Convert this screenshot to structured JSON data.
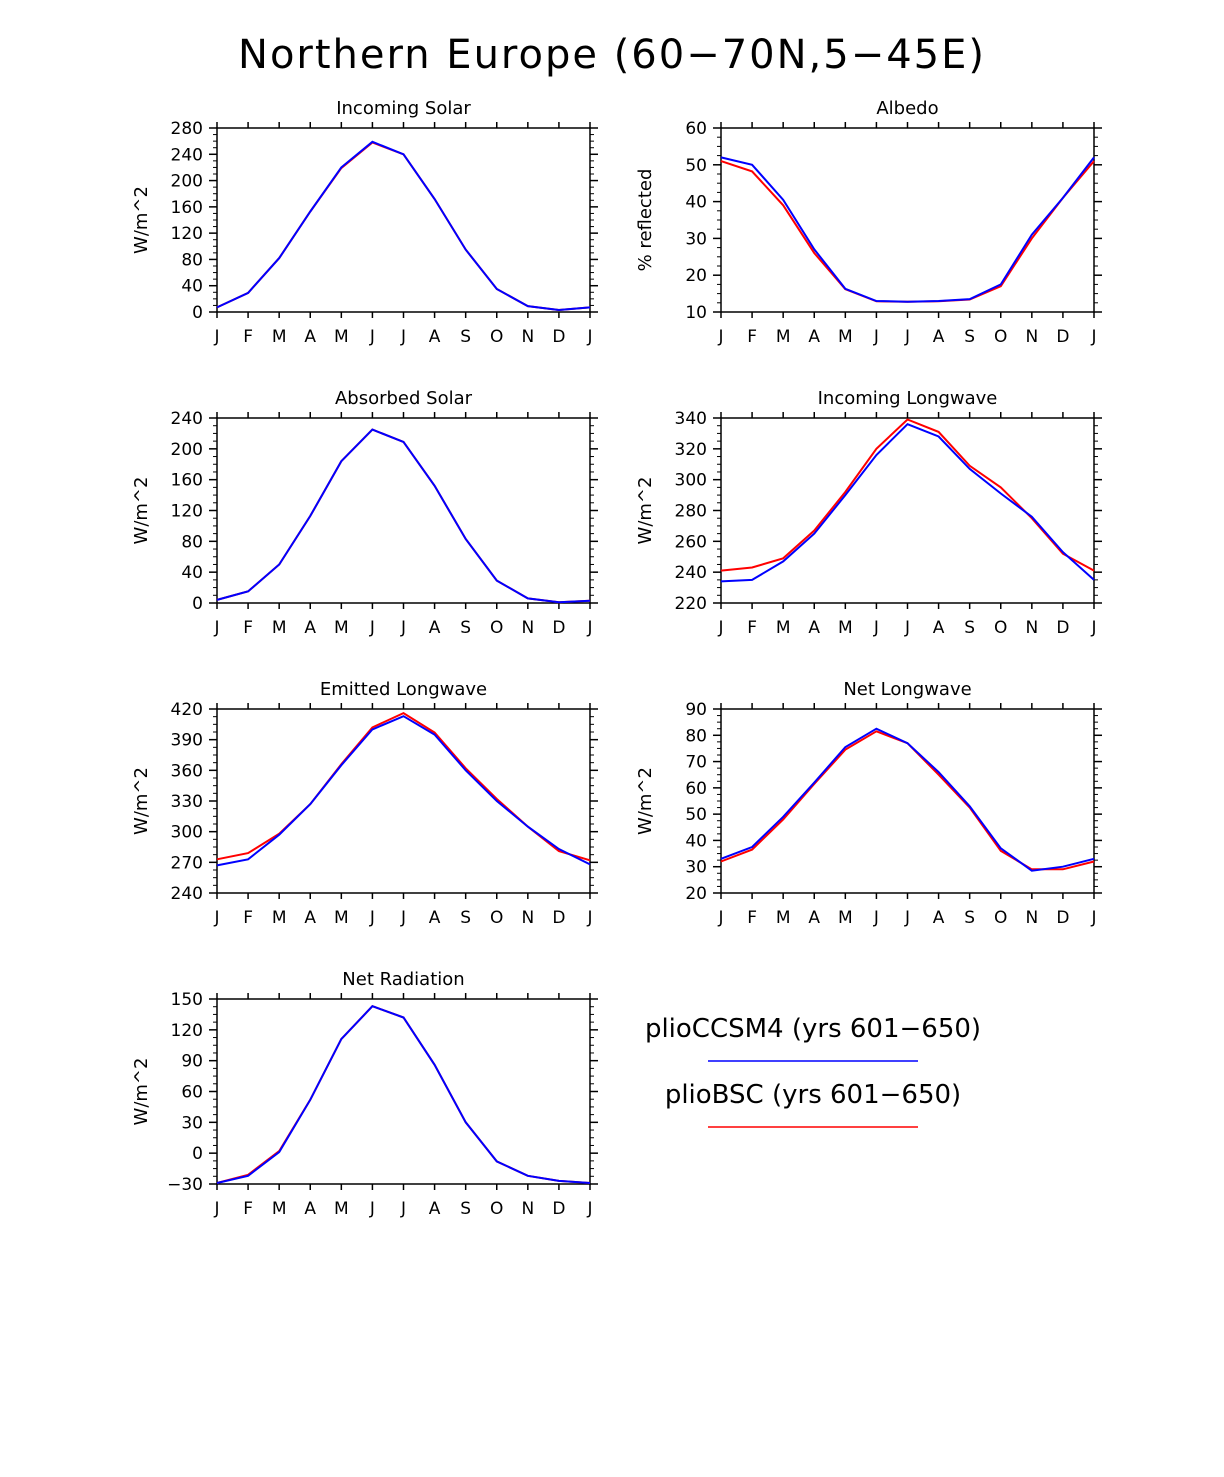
{
  "title": "Northern Europe (60−70N,5−45E)",
  "colors": {
    "series1": "#0000ff",
    "series2": "#ff0000"
  },
  "legend": [
    {
      "label": "plioCCSM4 (yrs 601−650)",
      "color": "#0000ff"
    },
    {
      "label": "plioBSC (yrs 601−650)",
      "color": "#ff0000"
    }
  ],
  "chart_data": [
    {
      "type": "line",
      "title": "Incoming Solar",
      "ylabel": "W/m^2",
      "ylim": [
        0,
        280
      ],
      "yticks": [
        0,
        40,
        80,
        120,
        160,
        200,
        240,
        280
      ],
      "categories": [
        "J",
        "F",
        "M",
        "A",
        "M",
        "J",
        "J",
        "A",
        "S",
        "O",
        "N",
        "D",
        "J"
      ],
      "series": [
        {
          "name": "plioCCSM4 (yrs 601−650)",
          "values": [
            7,
            29,
            82,
            153,
            220,
            259,
            240,
            172,
            95,
            35,
            9,
            3,
            7
          ]
        },
        {
          "name": "plioBSC (yrs 601−650)",
          "values": [
            7,
            29,
            82,
            153,
            219,
            258,
            240,
            172,
            95,
            35,
            9,
            3,
            7
          ]
        }
      ]
    },
    {
      "type": "line",
      "title": "Albedo",
      "ylabel": "% reflected",
      "ylim": [
        10,
        60
      ],
      "yticks": [
        10,
        20,
        30,
        40,
        50,
        60
      ],
      "categories": [
        "J",
        "F",
        "M",
        "A",
        "M",
        "J",
        "J",
        "A",
        "S",
        "O",
        "N",
        "D",
        "J"
      ],
      "series": [
        {
          "name": "plioCCSM4 (yrs 601−650)",
          "values": [
            52,
            50,
            40.5,
            27,
            16.3,
            13,
            12.8,
            13,
            13.5,
            17.5,
            31,
            41,
            52
          ]
        },
        {
          "name": "plioBSC (yrs 601−650)",
          "values": [
            51,
            48.2,
            39,
            26,
            16.2,
            12.9,
            12.8,
            12.9,
            13.4,
            17,
            30,
            41,
            51
          ]
        }
      ]
    },
    {
      "type": "line",
      "title": "Absorbed Solar",
      "ylabel": "W/m^2",
      "ylim": [
        0,
        240
      ],
      "yticks": [
        0,
        40,
        80,
        120,
        160,
        200,
        240
      ],
      "categories": [
        "J",
        "F",
        "M",
        "A",
        "M",
        "J",
        "J",
        "A",
        "S",
        "O",
        "N",
        "D",
        "J"
      ],
      "series": [
        {
          "name": "plioCCSM4 (yrs 601−650)",
          "values": [
            4,
            15,
            50,
            113,
            184,
            225,
            209,
            152,
            83,
            29,
            6,
            1,
            3
          ]
        },
        {
          "name": "plioBSC (yrs 601−650)",
          "values": [
            4,
            15,
            50,
            113,
            184,
            225,
            209,
            152,
            83,
            29,
            6,
            1,
            3
          ]
        }
      ]
    },
    {
      "type": "line",
      "title": "Incoming Longwave",
      "ylabel": "W/m^2",
      "ylim": [
        220,
        340
      ],
      "yticks": [
        220,
        240,
        260,
        280,
        300,
        320,
        340
      ],
      "categories": [
        "J",
        "F",
        "M",
        "A",
        "M",
        "J",
        "J",
        "A",
        "S",
        "O",
        "N",
        "D",
        "J"
      ],
      "series": [
        {
          "name": "plioCCSM4 (yrs 601−650)",
          "values": [
            234,
            235,
            247,
            265,
            290,
            316,
            336,
            328,
            307,
            291,
            276,
            253,
            235
          ]
        },
        {
          "name": "plioBSC (yrs 601−650)",
          "values": [
            241,
            243,
            249,
            267,
            292,
            320,
            339,
            331,
            309,
            295,
            275,
            252,
            241
          ]
        }
      ]
    },
    {
      "type": "line",
      "title": "Emitted Longwave",
      "ylabel": "W/m^2",
      "ylim": [
        240,
        420
      ],
      "yticks": [
        240,
        270,
        300,
        330,
        360,
        390,
        420
      ],
      "categories": [
        "J",
        "F",
        "M",
        "A",
        "M",
        "J",
        "J",
        "A",
        "S",
        "O",
        "N",
        "D",
        "J"
      ],
      "series": [
        {
          "name": "plioCCSM4 (yrs 601−650)",
          "values": [
            267,
            273,
            297,
            327,
            365,
            400,
            413,
            395,
            360,
            330,
            305,
            283,
            268
          ]
        },
        {
          "name": "plioBSC (yrs 601−650)",
          "values": [
            273,
            279,
            298,
            327,
            366,
            402,
            416,
            397,
            362,
            332,
            305,
            281,
            272
          ]
        }
      ]
    },
    {
      "type": "line",
      "title": "Net Longwave",
      "ylabel": "W/m^2",
      "ylim": [
        20,
        90
      ],
      "yticks": [
        20,
        30,
        40,
        50,
        60,
        70,
        80,
        90
      ],
      "categories": [
        "J",
        "F",
        "M",
        "A",
        "M",
        "J",
        "J",
        "A",
        "S",
        "O",
        "N",
        "D",
        "J"
      ],
      "series": [
        {
          "name": "plioCCSM4 (yrs 601−650)",
          "values": [
            33,
            37.5,
            49,
            62,
            75.5,
            82.5,
            77,
            66,
            53,
            37,
            28.5,
            30,
            33
          ]
        },
        {
          "name": "plioBSC (yrs 601−650)",
          "values": [
            32,
            36.5,
            48,
            61.5,
            74.5,
            81.5,
            77,
            65,
            52.5,
            36,
            29,
            29,
            32
          ]
        }
      ]
    },
    {
      "type": "line",
      "title": "Net Radiation",
      "ylabel": "W/m^2",
      "ylim": [
        -30,
        150
      ],
      "yticks": [
        -30,
        0,
        30,
        60,
        90,
        120,
        150
      ],
      "categories": [
        "J",
        "F",
        "M",
        "A",
        "M",
        "J",
        "J",
        "A",
        "S",
        "O",
        "N",
        "D",
        "J"
      ],
      "series": [
        {
          "name": "plioCCSM4 (yrs 601−650)",
          "values": [
            -29,
            -22,
            1,
            52,
            111,
            143,
            132,
            86,
            30,
            -8,
            -22,
            -27,
            -29
          ]
        },
        {
          "name": "plioBSC (yrs 601−650)",
          "values": [
            -29,
            -21,
            2,
            52,
            111,
            143,
            132,
            86,
            30,
            -8,
            -22,
            -27,
            -29
          ]
        }
      ]
    }
  ]
}
